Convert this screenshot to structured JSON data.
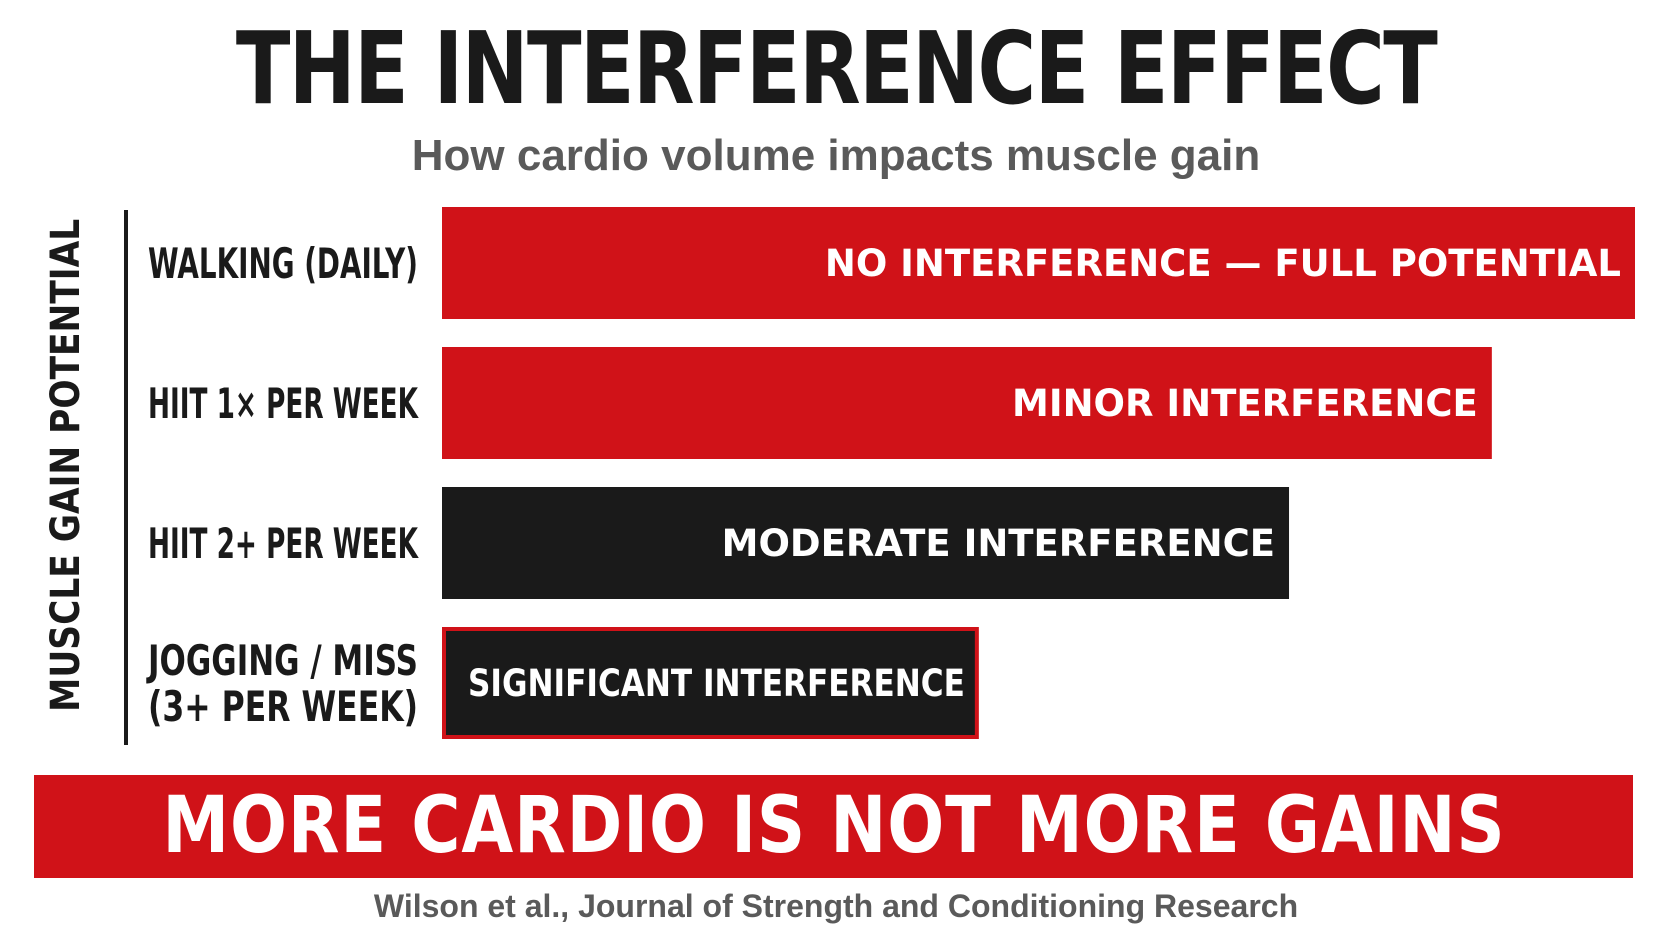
{
  "header": {
    "title": "THE INTERFERENCE EFFECT",
    "subtitle": "How cardio volume impacts muscle gain"
  },
  "footer": {
    "banner": "MORE CARDIO IS NOT MORE GAINS",
    "source": "Wilson et al., Journal of Strength and Conditioning Research"
  },
  "colors": {
    "red": "#d01218",
    "dark": "#1a1a1a",
    "gray": "#5a5a5a",
    "white": "#ffffff"
  },
  "chart_data": {
    "type": "bar",
    "orientation": "horizontal",
    "title": "THE INTERFERENCE EFFECT",
    "subtitle": "How cardio volume impacts muscle gain",
    "ylabel": "MUSCLE GAIN POTENTIAL",
    "xlabel": "",
    "grid": false,
    "xlim": [
      0,
      100
    ],
    "categories": [
      [
        "WALKING (DAILY)"
      ],
      [
        "HIIT 1× PER WEEK"
      ],
      [
        "HIIT 2+ PER WEEK"
      ],
      [
        "JOGGING / MISS",
        "(3+ PER WEEK)"
      ]
    ],
    "values": [
      100,
      88,
      71,
      45
    ],
    "bar_labels": [
      "NO INTERFERENCE — FULL POTENTIAL",
      "MINOR INTERFERENCE",
      "MODERATE INTERFERENCE",
      "SIGNIFICANT INTERFERENCE"
    ],
    "bar_colors": [
      "#d01218",
      "#d01218",
      "#1a1a1a",
      "#1a1a1a"
    ],
    "bar_outlines": [
      "",
      "",
      "",
      "#d01218"
    ]
  }
}
